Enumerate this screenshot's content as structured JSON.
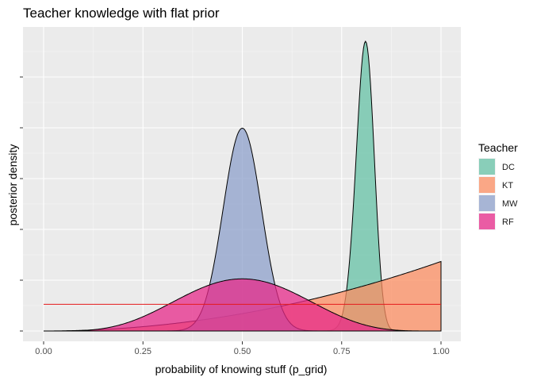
{
  "chart_data": {
    "type": "area",
    "title": "Teacher knowledge with flat prior",
    "xlabel": "probability of knowing stuff (p_grid)",
    "ylabel": "posterior density",
    "xlim": [
      0,
      1
    ],
    "x_ticks": [
      "0.00",
      "0.25",
      "0.50",
      "0.75",
      "1.00"
    ],
    "y_ticks_labeled": false,
    "grid": true,
    "legend": {
      "title": "Teacher",
      "position": "right"
    },
    "hline": {
      "y": 0.092,
      "color": "#e41a1c"
    },
    "series": [
      {
        "name": "DC",
        "color": "#66c2a5",
        "shape": "beta",
        "mode": 0.81,
        "peak": 1.0,
        "concentration": 300
      },
      {
        "name": "KT",
        "color": "#fc8d62",
        "shape": "power",
        "exponent": 2,
        "peak": 0.24
      },
      {
        "name": "MW",
        "color": "#8da0cb",
        "shape": "beta",
        "mode": 0.5,
        "peak": 0.7,
        "concentration": 110
      },
      {
        "name": "RF",
        "color": "#e7298a",
        "shape": "beta",
        "mode": 0.5,
        "peak": 0.18,
        "concentration": 11
      }
    ]
  }
}
